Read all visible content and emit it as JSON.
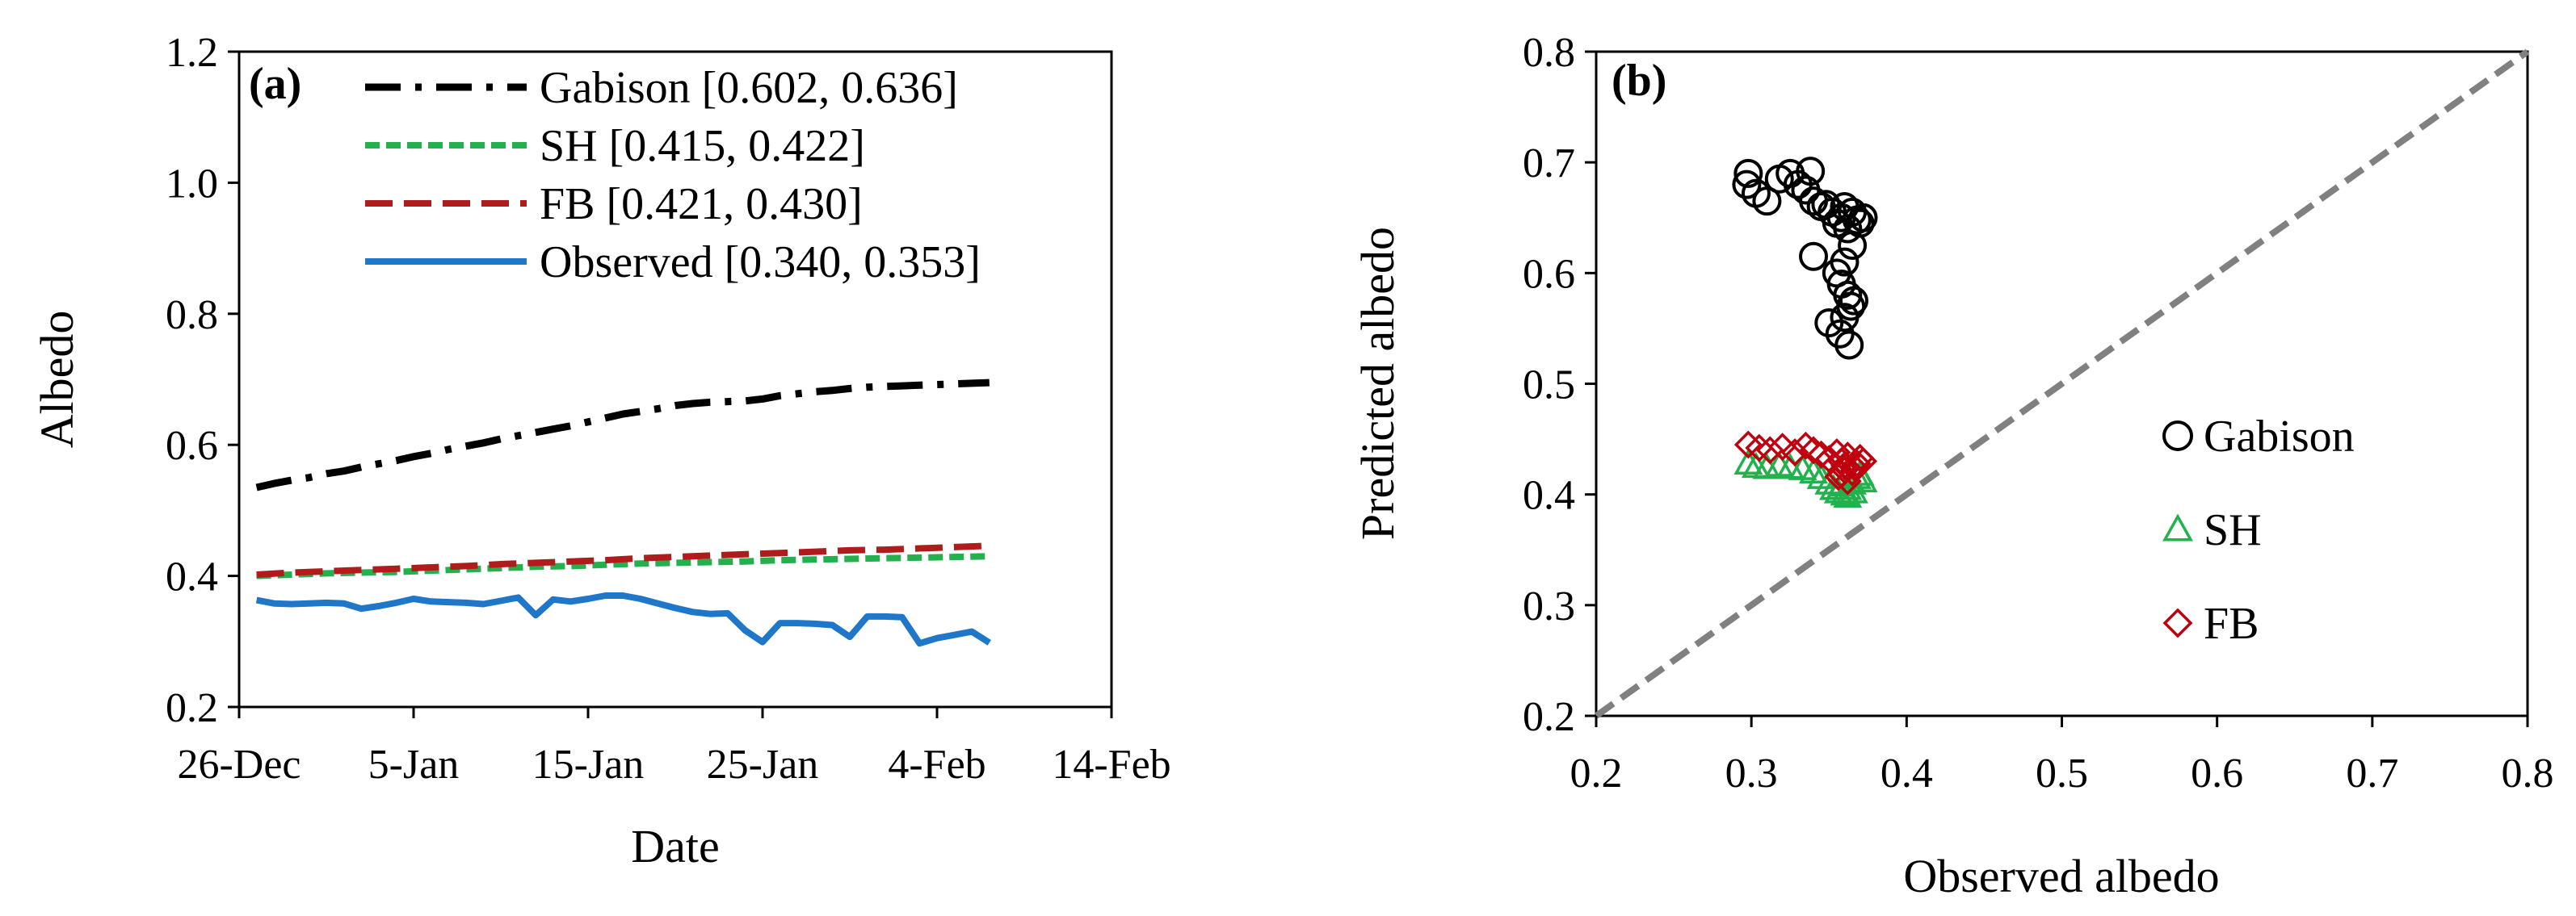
{
  "chart_data": [
    {
      "type": "line",
      "panel_label": "(a)",
      "xlabel": "Date",
      "ylabel": "Albedo",
      "ylim": [
        0.2,
        1.2
      ],
      "yticks": [
        0.2,
        0.4,
        0.6,
        0.8,
        1.0,
        1.2
      ],
      "ytick_labels": [
        "0.2",
        "0.4",
        "0.6",
        "0.8",
        "1.0",
        "1.2"
      ],
      "xlim": [
        0,
        50
      ],
      "xticks": [
        0,
        10,
        20,
        30,
        40,
        50
      ],
      "xtick_labels": [
        "26-Dec",
        "5-Jan",
        "15-Jan",
        "25-Jan",
        "4-Feb",
        "14-Feb"
      ],
      "legend_position": "top-left",
      "series": [
        {
          "name": "Gabison [0.602, 0.636]",
          "color": "#000000",
          "style": "dash-dot",
          "x": [
            1,
            2,
            3,
            4,
            5,
            6,
            7,
            8,
            9,
            10,
            11,
            12,
            13,
            14,
            15,
            16,
            17,
            18,
            19,
            20,
            21,
            22,
            23,
            24,
            25,
            26,
            27,
            28,
            29,
            30,
            31,
            32,
            33,
            34,
            35,
            36,
            37,
            38,
            39,
            40,
            41,
            42,
            43
          ],
          "values": [
            0.535,
            0.541,
            0.546,
            0.55,
            0.556,
            0.56,
            0.566,
            0.571,
            0.576,
            0.582,
            0.587,
            0.593,
            0.598,
            0.603,
            0.609,
            0.614,
            0.619,
            0.624,
            0.629,
            0.635,
            0.641,
            0.647,
            0.651,
            0.655,
            0.66,
            0.663,
            0.665,
            0.666,
            0.667,
            0.67,
            0.675,
            0.678,
            0.681,
            0.683,
            0.686,
            0.688,
            0.689,
            0.69,
            0.691,
            0.692,
            0.693,
            0.694,
            0.695
          ]
        },
        {
          "name": "SH [0.415, 0.422]",
          "color": "#22b14c",
          "style": "short-dash",
          "x": [
            1,
            3,
            5,
            7,
            9,
            11,
            13,
            15,
            17,
            19,
            21,
            23,
            25,
            27,
            29,
            31,
            33,
            35,
            37,
            39,
            41,
            43
          ],
          "values": [
            0.4,
            0.402,
            0.404,
            0.405,
            0.406,
            0.408,
            0.41,
            0.412,
            0.414,
            0.415,
            0.417,
            0.419,
            0.42,
            0.421,
            0.422,
            0.424,
            0.425,
            0.426,
            0.427,
            0.428,
            0.429,
            0.43
          ]
        },
        {
          "name": "FB [0.421, 0.430]",
          "color": "#b01c1c",
          "style": "long-dash",
          "x": [
            1,
            3,
            5,
            7,
            9,
            11,
            13,
            15,
            17,
            19,
            21,
            23,
            25,
            27,
            29,
            31,
            33,
            35,
            37,
            39,
            41,
            43
          ],
          "values": [
            0.402,
            0.405,
            0.407,
            0.409,
            0.411,
            0.413,
            0.415,
            0.418,
            0.42,
            0.422,
            0.424,
            0.427,
            0.429,
            0.431,
            0.433,
            0.435,
            0.437,
            0.439,
            0.44,
            0.442,
            0.444,
            0.446
          ]
        },
        {
          "name": "Observed [0.340, 0.353]",
          "color": "#1f77c9",
          "style": "solid",
          "x": [
            1,
            2,
            3,
            4,
            5,
            6,
            7,
            8,
            9,
            10,
            11,
            12,
            13,
            14,
            15,
            16,
            17,
            18,
            19,
            20,
            21,
            22,
            23,
            24,
            25,
            26,
            27,
            28,
            29,
            30,
            31,
            32,
            33,
            34,
            35,
            36,
            37,
            38,
            39,
            40,
            41,
            42,
            43
          ],
          "values": [
            0.363,
            0.358,
            0.357,
            0.358,
            0.359,
            0.358,
            0.35,
            0.354,
            0.359,
            0.365,
            0.361,
            0.36,
            0.359,
            0.357,
            0.362,
            0.367,
            0.34,
            0.364,
            0.361,
            0.365,
            0.37,
            0.37,
            0.365,
            0.358,
            0.351,
            0.345,
            0.342,
            0.343,
            0.317,
            0.299,
            0.328,
            0.328,
            0.327,
            0.325,
            0.307,
            0.338,
            0.338,
            0.337,
            0.297,
            0.305,
            0.31,
            0.315,
            0.298
          ]
        }
      ]
    },
    {
      "type": "scatter",
      "panel_label": "(b)",
      "xlabel": "Observed albedo",
      "ylabel": "Predicted albedo",
      "xlim": [
        0.2,
        0.8
      ],
      "ylim": [
        0.2,
        0.8
      ],
      "xticks": [
        0.2,
        0.3,
        0.4,
        0.5,
        0.6,
        0.7,
        0.8
      ],
      "xtick_labels": [
        "0.2",
        "0.3",
        "0.4",
        "0.5",
        "0.6",
        "0.7",
        "0.8"
      ],
      "yticks": [
        0.2,
        0.3,
        0.4,
        0.5,
        0.6,
        0.7,
        0.8
      ],
      "ytick_labels": [
        "0.2",
        "0.3",
        "0.4",
        "0.5",
        "0.6",
        "0.7",
        "0.8"
      ],
      "legend_position": "middle-right",
      "reference_line": {
        "description": "1:1 line",
        "color": "#808080",
        "points": [
          [
            0.2,
            0.2
          ],
          [
            0.8,
            0.8
          ]
        ]
      },
      "series": [
        {
          "name": "Gabison",
          "marker": "circle",
          "color": "#000000",
          "x": [
            0.298,
            0.303,
            0.297,
            0.31,
            0.318,
            0.325,
            0.33,
            0.335,
            0.338,
            0.34,
            0.345,
            0.348,
            0.352,
            0.355,
            0.358,
            0.36,
            0.362,
            0.365,
            0.368,
            0.37,
            0.372,
            0.365,
            0.36,
            0.355,
            0.35,
            0.358,
            0.362,
            0.364,
            0.366,
            0.36,
            0.357,
            0.363,
            0.34
          ],
          "values": [
            0.69,
            0.672,
            0.68,
            0.665,
            0.685,
            0.69,
            0.68,
            0.675,
            0.692,
            0.665,
            0.66,
            0.662,
            0.655,
            0.645,
            0.65,
            0.66,
            0.64,
            0.655,
            0.648,
            0.645,
            0.65,
            0.625,
            0.61,
            0.6,
            0.555,
            0.59,
            0.58,
            0.57,
            0.575,
            0.56,
            0.545,
            0.535,
            0.615
          ]
        },
        {
          "name": "SH",
          "marker": "triangle",
          "color": "#22b14c",
          "x": [
            0.298,
            0.303,
            0.31,
            0.318,
            0.325,
            0.333,
            0.34,
            0.345,
            0.35,
            0.353,
            0.356,
            0.36,
            0.362,
            0.365,
            0.368,
            0.37,
            0.372,
            0.358,
            0.362,
            0.366
          ],
          "values": [
            0.428,
            0.425,
            0.424,
            0.426,
            0.424,
            0.423,
            0.42,
            0.415,
            0.41,
            0.405,
            0.402,
            0.4,
            0.405,
            0.41,
            0.415,
            0.418,
            0.412,
            0.408,
            0.398,
            0.402
          ]
        },
        {
          "name": "FB",
          "marker": "diamond",
          "color": "#c0000f",
          "x": [
            0.298,
            0.305,
            0.312,
            0.32,
            0.328,
            0.335,
            0.34,
            0.345,
            0.35,
            0.355,
            0.358,
            0.36,
            0.362,
            0.365,
            0.368,
            0.37,
            0.372,
            0.358,
            0.362,
            0.366,
            0.36,
            0.356
          ],
          "values": [
            0.445,
            0.442,
            0.44,
            0.443,
            0.438,
            0.444,
            0.44,
            0.436,
            0.432,
            0.438,
            0.43,
            0.426,
            0.435,
            0.42,
            0.428,
            0.433,
            0.43,
            0.418,
            0.412,
            0.425,
            0.422,
            0.416
          ]
        }
      ]
    }
  ]
}
